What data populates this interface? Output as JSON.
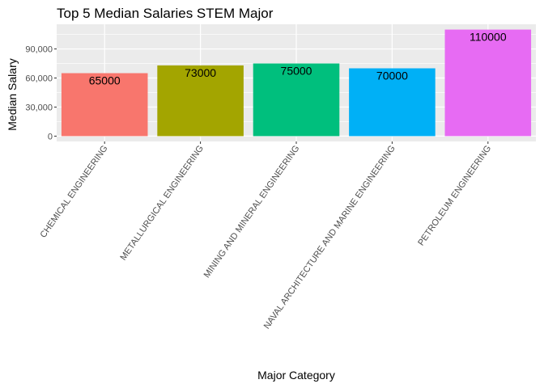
{
  "chart_data": {
    "type": "bar",
    "title": "Top 5 Median Salaries STEM Major",
    "xlabel": "Major Category",
    "ylabel": "Median Salary",
    "categories": [
      "CHEMICAL ENGINEERING",
      "METALLURGICAL ENGINEERING",
      "MINING AND MINERAL ENGINEERING",
      "NAVAL ARCHITECTURE AND MARINE ENGINEERING",
      "PETROLEUM ENGINEERING"
    ],
    "values": [
      65000,
      73000,
      75000,
      70000,
      110000
    ],
    "data_labels": [
      "65000",
      "73000",
      "75000",
      "70000",
      "110000"
    ],
    "colors": [
      "#F8766D",
      "#A3A500",
      "#00BF7D",
      "#00B0F6",
      "#E76BF3"
    ],
    "ylim": [
      -5500,
      115500
    ],
    "yticks": [
      0,
      30000,
      60000,
      90000
    ],
    "ytick_labels": [
      "0",
      "30,000",
      "60,000",
      "90,000"
    ],
    "grid": true,
    "panel_background": "#EBEBEB",
    "gridline_color": "#FFFFFF",
    "legend": "none"
  }
}
